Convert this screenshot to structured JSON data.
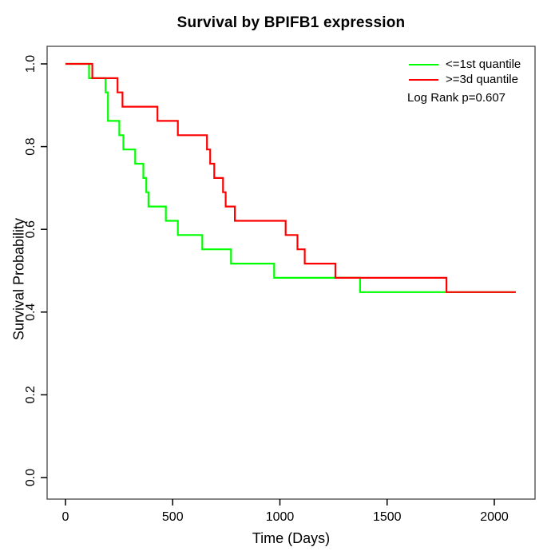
{
  "chart_data": {
    "type": "line",
    "variant": "kaplan_meier_step_survival",
    "title": "Survival by BPIFB1 expression",
    "xlabel": "Time (Days)",
    "ylabel": "Survival Probability",
    "xlim": [
      0,
      2190
    ],
    "ylim": [
      0,
      1
    ],
    "grid": false,
    "x_ticks": {
      "values": [
        0,
        500,
        1000,
        1500,
        2000
      ],
      "labels": [
        "0",
        "500",
        "1000",
        "1500",
        "2000"
      ]
    },
    "y_ticks": {
      "values": [
        0,
        0.2,
        0.4,
        0.6,
        0.8,
        1.0
      ],
      "labels": [
        "0.0",
        "0.2",
        "0.4",
        "0.6",
        "0.8",
        "1.0"
      ]
    },
    "legend_position": "top-right-inside",
    "legend": [
      {
        "label": "<=1st quantile",
        "color": "#00ff00"
      },
      {
        "label": ">=3d quantile",
        "color": "#ff0000"
      }
    ],
    "annotation": "Log Rank p=0.607",
    "series": [
      {
        "name": "<=1st quantile",
        "color": "#00ff00",
        "step": true,
        "points_t_survival": [
          [
            0,
            1.0
          ],
          [
            110,
            0.9655
          ],
          [
            187,
            0.931
          ],
          [
            198,
            0.8621
          ],
          [
            251,
            0.8276
          ],
          [
            270,
            0.7931
          ],
          [
            325,
            0.7586
          ],
          [
            363,
            0.7241
          ],
          [
            377,
            0.6897
          ],
          [
            387,
            0.6552
          ],
          [
            468,
            0.6207
          ],
          [
            524,
            0.5862
          ],
          [
            638,
            0.5517
          ],
          [
            772,
            0.5172
          ],
          [
            973,
            0.4828
          ],
          [
            1374,
            0.4483
          ],
          [
            2100,
            0.4483
          ]
        ]
      },
      {
        "name": ">=3d quantile",
        "color": "#ff0000",
        "step": true,
        "points_t_survival": [
          [
            0,
            1.0
          ],
          [
            125,
            0.9655
          ],
          [
            243,
            0.931
          ],
          [
            266,
            0.8966
          ],
          [
            429,
            0.8621
          ],
          [
            524,
            0.8276
          ],
          [
            660,
            0.7931
          ],
          [
            675,
            0.7586
          ],
          [
            694,
            0.7241
          ],
          [
            735,
            0.6897
          ],
          [
            747,
            0.6552
          ],
          [
            790,
            0.6207
          ],
          [
            1027,
            0.5862
          ],
          [
            1082,
            0.5517
          ],
          [
            1116,
            0.5172
          ],
          [
            1259,
            0.4828
          ],
          [
            1777,
            0.4483
          ],
          [
            2100,
            0.4483
          ]
        ]
      }
    ]
  }
}
